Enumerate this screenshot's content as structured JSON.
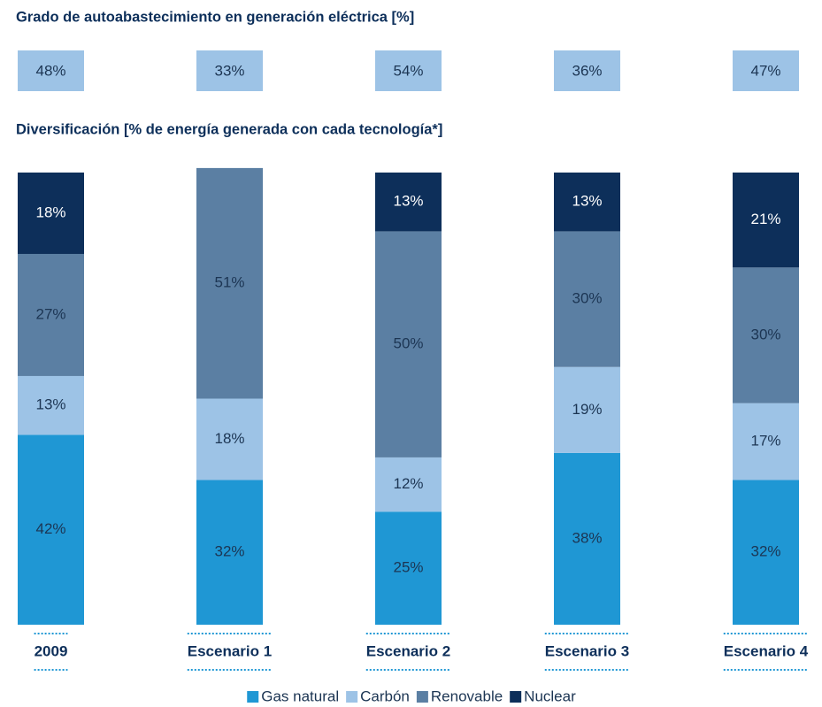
{
  "chart_data": [
    {
      "type": "tile",
      "title": "Grado de autoabastecimiento en generación eléctrica [%]",
      "values": [
        48,
        33,
        54,
        36,
        47
      ],
      "value_labels": [
        "48%",
        "33%",
        "54%",
        "36%",
        "47%"
      ],
      "color": "#9dc3e6"
    },
    {
      "type": "stacked_bar",
      "title": "Diversificación [% de energía generada con cada tecnología*]",
      "categories": [
        "2009",
        "Escenario 1",
        "Escenario 2",
        "Escenario 3",
        "Escenario 4"
      ],
      "ylim": [
        0,
        100
      ],
      "legend": "bottom",
      "series": [
        {
          "name": "Gas natural",
          "color": "#1f97d4",
          "values": [
            42,
            32,
            25,
            38,
            32
          ],
          "value_labels": [
            "42%",
            "32%",
            "25%",
            "38%",
            "32%"
          ]
        },
        {
          "name": "Carbón",
          "color": "#9dc3e6",
          "values": [
            13,
            18,
            12,
            19,
            17
          ],
          "value_labels": [
            "13%",
            "18%",
            "12%",
            "19%",
            "17%"
          ]
        },
        {
          "name": "Renovable",
          "color": "#5b7fa3",
          "values": [
            27,
            51,
            50,
            30,
            30
          ],
          "value_labels": [
            "27%",
            "51%",
            "50%",
            "30%",
            "30%"
          ]
        },
        {
          "name": "Nuclear",
          "color": "#0d2f5a",
          "values": [
            18,
            null,
            13,
            13,
            21
          ],
          "value_labels": [
            "18%",
            null,
            "13%",
            "13%",
            "21%"
          ]
        }
      ]
    }
  ]
}
